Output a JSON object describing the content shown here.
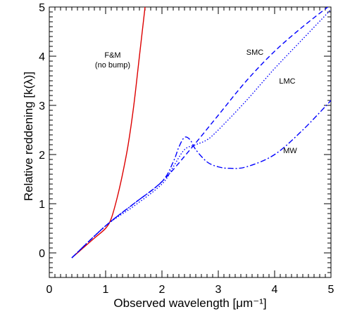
{
  "chart_data": {
    "type": "line",
    "title": "",
    "xlabel": "Observed wavelength  [μm⁻¹]",
    "ylabel": "Relative reddening  [k(λ)]",
    "xlim": [
      0,
      5
    ],
    "ylim": [
      -0.5,
      5
    ],
    "x_ticks": [
      "0",
      "1",
      "2",
      "3",
      "4",
      "5"
    ],
    "y_ticks": [
      "0",
      "1",
      "2",
      "3",
      "4",
      "5"
    ],
    "grid": false,
    "annotations": {
      "fm_line1": "F&M",
      "fm_line2": "(no bump)",
      "smc": "SMC",
      "lmc": "LMC",
      "mw": "MW"
    },
    "series": [
      {
        "color": "#dd0000",
        "dash": "solid",
        "points": [
          [
            0.4,
            -0.1
          ],
          [
            0.6,
            0.1
          ],
          [
            0.8,
            0.3
          ],
          [
            1.0,
            0.5
          ],
          [
            1.1,
            0.7
          ],
          [
            1.2,
            1.1
          ],
          [
            1.3,
            1.6
          ],
          [
            1.4,
            2.2
          ],
          [
            1.5,
            3.0
          ],
          [
            1.6,
            4.0
          ],
          [
            1.7,
            5.0
          ]
        ]
      },
      {
        "color": "#0000ff",
        "dash": "dashed",
        "points": [
          [
            0.4,
            -0.1
          ],
          [
            1.0,
            0.55
          ],
          [
            1.5,
            1.0
          ],
          [
            2.0,
            1.45
          ],
          [
            2.5,
            2.1
          ],
          [
            3.0,
            2.8
          ],
          [
            3.5,
            3.5
          ],
          [
            4.0,
            4.1
          ],
          [
            4.5,
            4.6
          ],
          [
            5.0,
            5.05
          ]
        ]
      },
      {
        "color": "#0000ff",
        "dash": "dotted",
        "points": [
          [
            0.4,
            -0.1
          ],
          [
            1.0,
            0.55
          ],
          [
            1.5,
            0.95
          ],
          [
            2.0,
            1.4
          ],
          [
            2.2,
            1.75
          ],
          [
            2.4,
            2.1
          ],
          [
            2.6,
            2.2
          ],
          [
            2.8,
            2.3
          ],
          [
            3.0,
            2.5
          ],
          [
            3.5,
            3.1
          ],
          [
            4.0,
            3.75
          ],
          [
            4.5,
            4.35
          ],
          [
            5.0,
            4.95
          ]
        ]
      },
      {
        "color": "#0000ff",
        "dash": "dashdot",
        "points": [
          [
            0.4,
            -0.1
          ],
          [
            1.0,
            0.55
          ],
          [
            1.5,
            1.0
          ],
          [
            2.0,
            1.45
          ],
          [
            2.2,
            1.85
          ],
          [
            2.3,
            2.15
          ],
          [
            2.4,
            2.35
          ],
          [
            2.5,
            2.3
          ],
          [
            2.6,
            2.1
          ],
          [
            2.8,
            1.85
          ],
          [
            3.0,
            1.75
          ],
          [
            3.2,
            1.72
          ],
          [
            3.5,
            1.75
          ],
          [
            4.0,
            2.0
          ],
          [
            4.5,
            2.5
          ],
          [
            5.0,
            3.1
          ]
        ]
      }
    ]
  }
}
